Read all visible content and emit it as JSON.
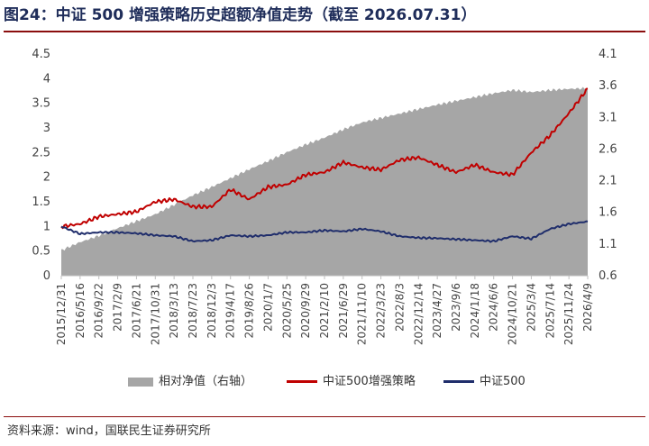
{
  "title": "图24：中证 500 增强策略历史超额净值走势（截至 2026.07.31）",
  "source": "资料来源：wind，国联民生证券研究所",
  "colors": {
    "area": "#a6a6a6",
    "enhanced": "#c00000",
    "index": "#1f2d6b",
    "title": "#1f2d5a"
  },
  "chart_data": {
    "type": "line",
    "x_tick_labels": [
      "2015/12/31",
      "2016/5/16",
      "2016/9/22",
      "2017/2/9",
      "2017/6/21",
      "2017/10/31",
      "2018/3/13",
      "2018/7/23",
      "2018/12/3",
      "2019/4/17",
      "2019/8/26",
      "2020/1/7",
      "2020/5/25",
      "2020/9/29",
      "2021/2/10",
      "2021/6/29",
      "2021/11/10",
      "2022/3/23",
      "2022/8/3",
      "2022/12/14",
      "2023/4/27",
      "2023/9/6",
      "2024/1/18",
      "2024/6/6",
      "2024/10/21",
      "2025/3/4",
      "2025/7/14",
      "2025/11/24",
      "2026/4/9"
    ],
    "y_left": {
      "min": 0,
      "max": 4.5,
      "ticks": [
        "0",
        "0.5",
        "1",
        "1.5",
        "2",
        "2.5",
        "3",
        "3.5",
        "4",
        "4.5"
      ]
    },
    "y_right": {
      "min": 0.6,
      "max": 4.1,
      "ticks": [
        "0.6",
        "1.1",
        "1.6",
        "2.1",
        "2.6",
        "3.1",
        "3.6",
        "4.1"
      ]
    },
    "legend_placement": "bottom",
    "series": [
      {
        "name": "相对净值（右轴）",
        "type": "area",
        "axis": "right",
        "points": [
          [
            0,
            1.0
          ],
          [
            1,
            1.13
          ],
          [
            2,
            1.23
          ],
          [
            3,
            1.35
          ],
          [
            4,
            1.46
          ],
          [
            5,
            1.57
          ],
          [
            6,
            1.72
          ],
          [
            7,
            1.87
          ],
          [
            8,
            2.0
          ],
          [
            9,
            2.14
          ],
          [
            10,
            2.28
          ],
          [
            11,
            2.41
          ],
          [
            12,
            2.55
          ],
          [
            13,
            2.67
          ],
          [
            14,
            2.78
          ],
          [
            15,
            2.91
          ],
          [
            16,
            3.02
          ],
          [
            17,
            3.09
          ],
          [
            18,
            3.16
          ],
          [
            19,
            3.23
          ],
          [
            20,
            3.3
          ],
          [
            21,
            3.36
          ],
          [
            22,
            3.42
          ],
          [
            23,
            3.48
          ],
          [
            24,
            3.53
          ],
          [
            25,
            3.5
          ],
          [
            26,
            3.53
          ],
          [
            27,
            3.55
          ],
          [
            28,
            3.56
          ]
        ]
      },
      {
        "name": "中证500增强策略",
        "type": "line",
        "axis": "left",
        "points": [
          [
            0,
            1.0
          ],
          [
            1,
            1.05
          ],
          [
            2,
            1.2
          ],
          [
            3,
            1.25
          ],
          [
            4,
            1.3
          ],
          [
            5,
            1.5
          ],
          [
            6,
            1.55
          ],
          [
            7,
            1.4
          ],
          [
            8,
            1.4
          ],
          [
            9,
            1.75
          ],
          [
            10,
            1.55
          ],
          [
            11,
            1.8
          ],
          [
            12,
            1.85
          ],
          [
            13,
            2.05
          ],
          [
            14,
            2.1
          ],
          [
            15,
            2.3
          ],
          [
            16,
            2.2
          ],
          [
            17,
            2.15
          ],
          [
            18,
            2.35
          ],
          [
            19,
            2.4
          ],
          [
            20,
            2.25
          ],
          [
            21,
            2.1
          ],
          [
            22,
            2.25
          ],
          [
            23,
            2.1
          ],
          [
            24,
            2.05
          ],
          [
            25,
            2.5
          ],
          [
            26,
            2.85
          ],
          [
            27,
            3.3
          ],
          [
            28,
            3.8
          ]
        ]
      },
      {
        "name": "中证500",
        "type": "line",
        "axis": "left",
        "points": [
          [
            0,
            1.0
          ],
          [
            1,
            0.85
          ],
          [
            2,
            0.88
          ],
          [
            3,
            0.88
          ],
          [
            4,
            0.86
          ],
          [
            5,
            0.82
          ],
          [
            6,
            0.8
          ],
          [
            7,
            0.7
          ],
          [
            8,
            0.72
          ],
          [
            9,
            0.82
          ],
          [
            10,
            0.8
          ],
          [
            11,
            0.82
          ],
          [
            12,
            0.88
          ],
          [
            13,
            0.88
          ],
          [
            14,
            0.92
          ],
          [
            15,
            0.9
          ],
          [
            16,
            0.95
          ],
          [
            17,
            0.9
          ],
          [
            18,
            0.8
          ],
          [
            19,
            0.77
          ],
          [
            20,
            0.76
          ],
          [
            21,
            0.74
          ],
          [
            22,
            0.72
          ],
          [
            23,
            0.7
          ],
          [
            24,
            0.8
          ],
          [
            25,
            0.75
          ],
          [
            26,
            0.95
          ],
          [
            27,
            1.05
          ],
          [
            28,
            1.1
          ]
        ]
      }
    ]
  }
}
